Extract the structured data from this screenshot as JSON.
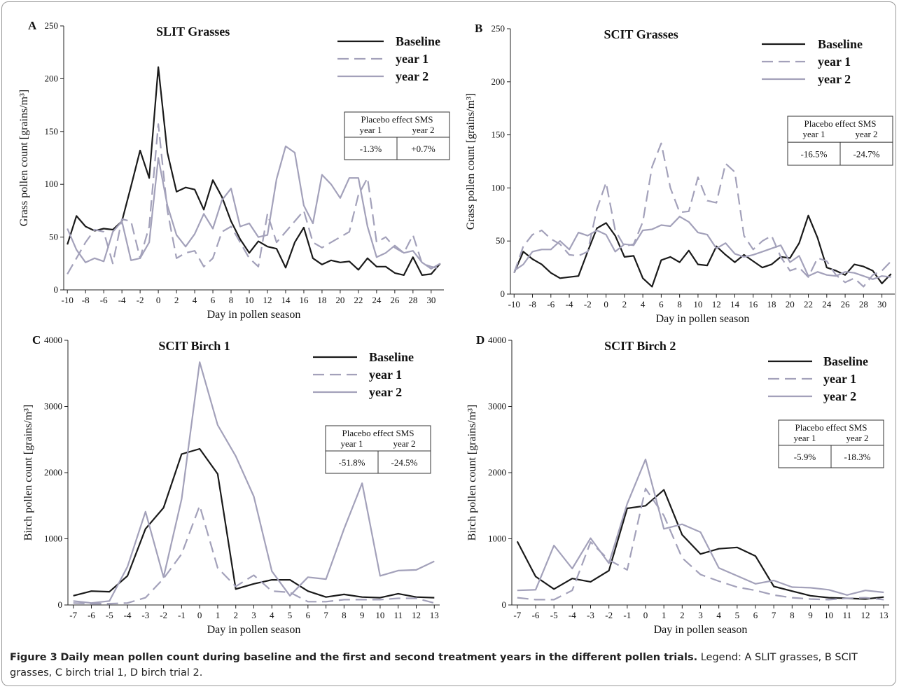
{
  "chart_data": [
    {
      "type": "line",
      "panel": "A",
      "title": "SLIT Grasses",
      "x_label": "Day in pollen season",
      "y_label": "Grass pollen count [grains/m³]",
      "x": [
        -10,
        -9,
        -8,
        -7,
        -6,
        -5,
        -4,
        -3,
        -2,
        -1,
        0,
        1,
        2,
        3,
        4,
        5,
        6,
        7,
        8,
        9,
        10,
        11,
        12,
        13,
        14,
        15,
        16,
        17,
        18,
        19,
        20,
        21,
        22,
        23,
        24,
        25,
        26,
        27,
        28,
        29,
        30,
        31
      ],
      "series": [
        {
          "name": "Baseline",
          "color": "#1a1a1a",
          "dashed": false,
          "values": [
            43,
            70,
            60,
            56,
            58,
            57,
            65,
            98,
            132,
            106,
            211,
            130,
            93,
            97,
            95,
            76,
            104,
            88,
            65,
            48,
            35,
            46,
            41,
            39,
            21,
            45,
            59,
            30,
            24,
            28,
            26,
            27,
            19,
            30,
            22,
            22,
            16,
            14,
            31,
            14,
            15,
            25
          ]
        },
        {
          "name": "year 1",
          "color": "#a3a1ba",
          "dashed": true,
          "values": [
            15,
            30,
            45,
            57,
            55,
            25,
            67,
            65,
            30,
            60,
            157,
            75,
            30,
            35,
            37,
            22,
            30,
            55,
            60,
            45,
            30,
            22,
            72,
            45,
            55,
            65,
            75,
            45,
            40,
            45,
            50,
            55,
            90,
            106,
            45,
            50,
            40,
            35,
            52,
            25,
            22,
            20
          ]
        },
        {
          "name": "year 2",
          "color": "#a3a1ba",
          "dashed": false,
          "values": [
            58,
            38,
            26,
            30,
            27,
            55,
            65,
            28,
            30,
            45,
            125,
            80,
            52,
            41,
            53,
            72,
            58,
            85,
            96,
            60,
            63,
            50,
            52,
            105,
            136,
            130,
            80,
            63,
            109,
            100,
            87,
            106,
            106,
            60,
            31,
            35,
            42,
            35,
            37,
            26,
            20,
            25
          ]
        }
      ],
      "xlim": [
        -10.4,
        31.4
      ],
      "xticks": [
        -10,
        -8,
        -6,
        -4,
        -2,
        0,
        2,
        4,
        6,
        8,
        10,
        12,
        14,
        16,
        18,
        20,
        22,
        24,
        26,
        28,
        30
      ],
      "ylim": [
        0,
        250
      ],
      "yticks": [
        0,
        50,
        100,
        150,
        200,
        250
      ],
      "grid": false,
      "legend": "upper right",
      "placebo": {
        "title": "Placebo effect SMS",
        "columns": [
          "year 1",
          "year 2"
        ],
        "values": [
          "-1.3%",
          "+0.7%"
        ]
      }
    },
    {
      "type": "line",
      "panel": "B",
      "title": "SCIT Grasses",
      "x_label": "Day in pollen season",
      "y_label": "Grass pollen count [grains/m³]",
      "x": [
        -10,
        -9,
        -8,
        -7,
        -6,
        -5,
        -4,
        -3,
        -2,
        -1,
        0,
        1,
        2,
        3,
        4,
        5,
        6,
        7,
        8,
        9,
        10,
        11,
        12,
        13,
        14,
        15,
        16,
        17,
        18,
        19,
        20,
        21,
        22,
        23,
        24,
        25,
        26,
        27,
        28,
        29,
        30,
        31
      ],
      "series": [
        {
          "name": "Baseline",
          "color": "#1a1a1a",
          "dashed": false,
          "values": [
            20,
            40,
            33,
            28,
            20,
            15,
            16,
            17,
            40,
            62,
            67,
            55,
            35,
            36,
            15,
            7,
            32,
            35,
            30,
            41,
            28,
            27,
            45,
            37,
            30,
            37,
            31,
            25,
            28,
            35,
            34,
            48,
            74,
            53,
            25,
            22,
            18,
            28,
            26,
            22,
            10,
            19
          ]
        },
        {
          "name": "year 1",
          "color": "#a3a1ba",
          "dashed": true,
          "values": [
            20,
            45,
            56,
            60,
            52,
            47,
            37,
            36,
            40,
            80,
            105,
            60,
            45,
            47,
            68,
            120,
            142,
            100,
            77,
            78,
            110,
            88,
            86,
            123,
            115,
            55,
            42,
            50,
            55,
            35,
            22,
            25,
            16,
            34,
            31,
            18,
            11,
            15,
            7,
            18,
            22,
            31
          ]
        },
        {
          "name": "year 2",
          "color": "#a3a1ba",
          "dashed": false,
          "values": [
            22,
            28,
            40,
            42,
            42,
            50,
            42,
            58,
            55,
            60,
            56,
            40,
            47,
            46,
            60,
            61,
            65,
            64,
            73,
            68,
            58,
            56,
            43,
            48,
            38,
            35,
            37,
            40,
            43,
            46,
            30,
            36,
            17,
            21,
            18,
            17,
            21,
            20,
            17,
            14,
            17,
            16
          ]
        }
      ],
      "xlim": [
        -10.4,
        31.4
      ],
      "xticks": [
        -10,
        -8,
        -6,
        -4,
        -2,
        0,
        2,
        4,
        6,
        8,
        10,
        12,
        14,
        16,
        18,
        20,
        22,
        24,
        26,
        28,
        30
      ],
      "ylim": [
        0,
        250
      ],
      "yticks": [
        0,
        50,
        100,
        150,
        200,
        250
      ],
      "grid": false,
      "legend": "upper right",
      "placebo": {
        "title": "Placebo effect SMS",
        "columns": [
          "year 1",
          "year 2"
        ],
        "values": [
          "-16.5%",
          "-24.7%"
        ]
      }
    },
    {
      "type": "line",
      "panel": "C",
      "title": "SCIT Birch 1",
      "x_label": "Day in pollen season",
      "y_label": "Birch pollen count [grains/m³]",
      "x": [
        -7,
        -6,
        -5,
        -4,
        -3,
        -2,
        -1,
        0,
        1,
        2,
        3,
        4,
        5,
        6,
        7,
        8,
        9,
        10,
        11,
        12,
        13
      ],
      "series": [
        {
          "name": "Baseline",
          "color": "#1a1a1a",
          "dashed": false,
          "values": [
            140,
            210,
            200,
            440,
            1150,
            1470,
            2280,
            2360,
            1980,
            240,
            320,
            380,
            380,
            210,
            120,
            160,
            120,
            110,
            170,
            120,
            110
          ]
        },
        {
          "name": "year 1",
          "color": "#a3a1ba",
          "dashed": true,
          "values": [
            30,
            20,
            20,
            30,
            110,
            400,
            770,
            1500,
            560,
            280,
            450,
            210,
            190,
            50,
            50,
            80,
            80,
            80,
            100,
            100,
            30
          ]
        },
        {
          "name": "year 2",
          "color": "#a3a1ba",
          "dashed": false,
          "values": [
            60,
            30,
            60,
            580,
            1410,
            420,
            1600,
            3670,
            2720,
            2250,
            1640,
            510,
            140,
            420,
            390,
            1150,
            1840,
            440,
            520,
            530,
            660
          ]
        }
      ],
      "xlim": [
        -7.3,
        13.3
      ],
      "xticks": [
        -7,
        -6,
        -5,
        -4,
        -3,
        -2,
        -1,
        0,
        1,
        2,
        3,
        4,
        5,
        6,
        7,
        8,
        9,
        10,
        11,
        12,
        13
      ],
      "ylim": [
        0,
        4000
      ],
      "yticks": [
        0,
        1000,
        2000,
        3000,
        4000
      ],
      "grid": false,
      "legend": "upper right",
      "placebo": {
        "title": "Placebo effect SMS",
        "columns": [
          "year 1",
          "year 2"
        ],
        "values": [
          "-51.8%",
          "-24.5%"
        ]
      }
    },
    {
      "type": "line",
      "panel": "D",
      "title": "SCIT Birch 2",
      "x_label": "Day in pollen season",
      "y_label": "Birch pollen count [grains/m³]",
      "x": [
        -7,
        -6,
        -5,
        -4,
        -3,
        -2,
        -1,
        0,
        1,
        2,
        3,
        4,
        5,
        6,
        7,
        8,
        9,
        10,
        11,
        12,
        13
      ],
      "series": [
        {
          "name": "Baseline",
          "color": "#1a1a1a",
          "dashed": false,
          "values": [
            960,
            430,
            240,
            400,
            350,
            520,
            1460,
            1500,
            1740,
            1060,
            770,
            850,
            870,
            740,
            280,
            210,
            140,
            110,
            100,
            90,
            120
          ]
        },
        {
          "name": "year 1",
          "color": "#a3a1ba",
          "dashed": true,
          "values": [
            110,
            80,
            80,
            220,
            950,
            680,
            530,
            1760,
            1350,
            710,
            460,
            360,
            270,
            220,
            150,
            110,
            90,
            80,
            100,
            110,
            80
          ]
        },
        {
          "name": "year 2",
          "color": "#a3a1ba",
          "dashed": false,
          "values": [
            220,
            230,
            900,
            550,
            1010,
            630,
            1530,
            2200,
            1150,
            1220,
            1100,
            560,
            440,
            320,
            370,
            270,
            260,
            230,
            150,
            220,
            190
          ]
        }
      ],
      "xlim": [
        -7.3,
        13.3
      ],
      "xticks": [
        -7,
        -6,
        -5,
        -4,
        -3,
        -2,
        -1,
        0,
        1,
        2,
        3,
        4,
        5,
        6,
        7,
        8,
        9,
        10,
        11,
        12,
        13
      ],
      "ylim": [
        0,
        4000
      ],
      "yticks": [
        0,
        1000,
        2000,
        3000,
        4000
      ],
      "grid": false,
      "legend": "upper right",
      "placebo": {
        "title": "Placebo effect SMS",
        "columns": [
          "year 1",
          "year 2"
        ],
        "values": [
          "-5.9%",
          "-18.3%"
        ]
      }
    }
  ],
  "caption": {
    "label": "Figure 3",
    "title": "Daily mean pollen count during baseline and the first and second treatment years in the different pollen trials.",
    "legend": "Legend: A SLIT grasses, B SCIT grasses, C birch trial 1, D birch trial 2."
  }
}
